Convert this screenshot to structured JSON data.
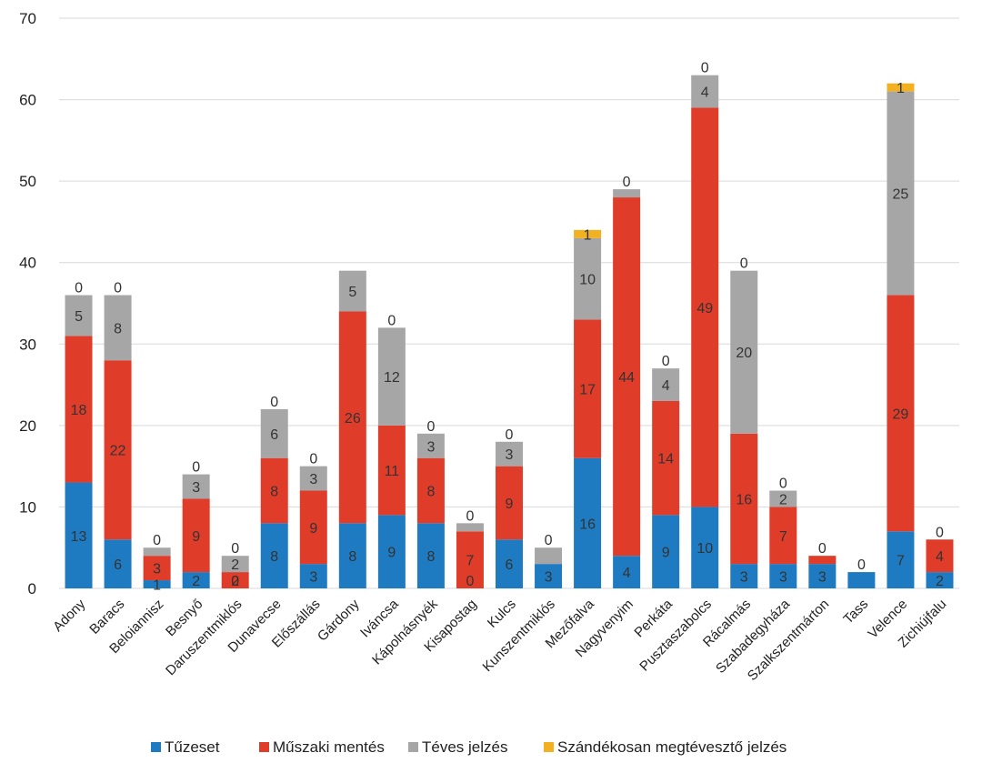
{
  "chart_data": {
    "type": "bar",
    "stacked": true,
    "categories": [
      "Adony",
      "Baracs",
      "Beloiannisz",
      "Besnyő",
      "Daruszentmiklós",
      "Dunavecse",
      "Előszállás",
      "Gárdony",
      "Iváncsa",
      "Kápolnásnyék",
      "Kisapostag",
      "Kulcs",
      "Kunszentmiklós",
      "Mezőfalva",
      "Nagyvenyim",
      "Perkáta",
      "Pusztaszabolcs",
      "Rácalmás",
      "Szabadegyháza",
      "Szalkszentmárton",
      "Tass",
      "Velence",
      "Zichiújfalu"
    ],
    "series": [
      {
        "name": "Tűzeset",
        "color": "#1f7bc1",
        "values": [
          13,
          6,
          1,
          2,
          0,
          8,
          3,
          8,
          9,
          8,
          0,
          6,
          3,
          16,
          4,
          9,
          10,
          3,
          3,
          3,
          2,
          7,
          2
        ]
      },
      {
        "name": "Műszaki mentés",
        "color": "#e03c2a",
        "values": [
          18,
          22,
          3,
          9,
          2,
          8,
          9,
          26,
          11,
          8,
          7,
          9,
          0,
          17,
          44,
          14,
          49,
          16,
          7,
          1,
          0,
          29,
          4
        ]
      },
      {
        "name": "Téves jelzés",
        "color": "#a6a6a6",
        "values": [
          5,
          8,
          1,
          3,
          2,
          6,
          3,
          5,
          12,
          3,
          1,
          3,
          2,
          10,
          1,
          4,
          4,
          20,
          2,
          0,
          0,
          25,
          0
        ]
      },
      {
        "name": "Szándékosan megtévesztő jelzés",
        "color": "#f2b120",
        "values": [
          0,
          0,
          0,
          0,
          0,
          0,
          0,
          0,
          0,
          0,
          0,
          0,
          0,
          1,
          0,
          0,
          0,
          0,
          0,
          0,
          0,
          1,
          0
        ]
      }
    ],
    "data_labels": [
      [
        "13",
        "6",
        "1",
        "2",
        "0",
        "8",
        "3",
        "8",
        "9",
        "8",
        "0",
        "6",
        "3",
        "16",
        "4",
        "9",
        "10",
        "3",
        "3",
        "3",
        "",
        "7",
        "2"
      ],
      [
        "18",
        "22",
        "3",
        "9",
        "2",
        "8",
        "9",
        "26",
        "11",
        "8",
        "7",
        "9",
        "",
        "17",
        "44",
        "14",
        "49",
        "16",
        "7",
        "",
        "",
        "29",
        "4"
      ],
      [
        "5",
        "8",
        "",
        "3",
        "2",
        "6",
        "3",
        "5",
        "12",
        "3",
        "",
        "3",
        "",
        "10",
        "",
        "4",
        "4",
        "20",
        "2",
        "",
        "",
        "25",
        ""
      ],
      [
        "0",
        "0",
        "0",
        "0",
        "0",
        "0",
        "0",
        "",
        "0",
        "0",
        "0",
        "0",
        "0",
        "1",
        "0",
        "0",
        "0",
        "0",
        "0",
        "0",
        "0",
        "1",
        "0"
      ]
    ],
    "yticks": [
      "0",
      "10",
      "20",
      "30",
      "40",
      "50",
      "60",
      "70"
    ],
    "ylim": [
      0,
      70
    ],
    "grid": true,
    "legend_position": "bottom",
    "title": "",
    "xlabel": "",
    "ylabel": ""
  }
}
